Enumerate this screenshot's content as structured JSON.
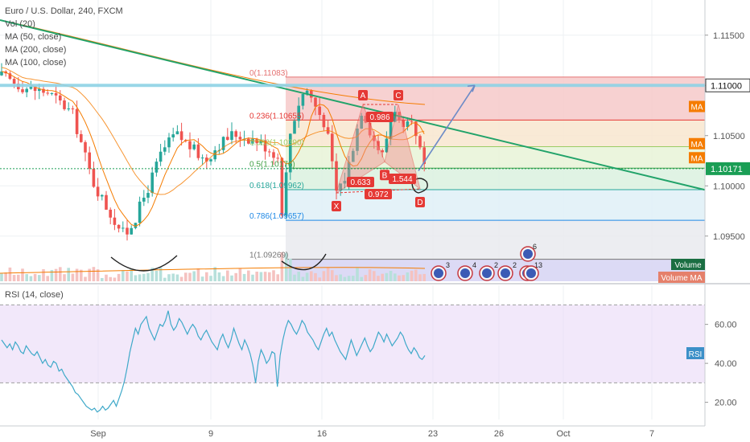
{
  "header": {
    "symbol_line": "Euro / U.S. Dollar, 240, FXCM",
    "vol_label": "Vol (20)",
    "ma50_label": "MA (50, close)",
    "ma200_label": "MA (200, close)",
    "ma100_label": "MA (100, close)",
    "rsi_label": "RSI (14, close)"
  },
  "colors": {
    "up": "#26a69a",
    "down": "#ef5350",
    "trendline": "#22a36a",
    "ma": "#f57c00",
    "rsi": "#3fa9c9",
    "rsi_band": "#ead9f7",
    "pattern_fill": "#f28c8c",
    "arrow": "#6d8bc7",
    "price_tag_green": "#1a9e55",
    "resistance": "#8fd3e6"
  },
  "chart_data": {
    "type": "candlestick",
    "price_axis": {
      "ticks": [
        1.115,
        1.11,
        1.105,
        1.1,
        1.095
      ],
      "tick_labels": [
        "1.11500",
        "1.11000",
        "1.10500",
        "1.10000",
        "1.09500"
      ],
      "ylim": [
        1.0905,
        1.1185
      ]
    },
    "time_axis": {
      "tick_labels": [
        "Sep",
        "9",
        "16",
        "23",
        "26",
        "Oct",
        "7"
      ]
    },
    "price_tags": [
      {
        "label": "1.11000",
        "value": 1.11,
        "style": "outline"
      },
      {
        "label": "1.10171",
        "value": 1.10171,
        "style": "filled"
      }
    ],
    "ma_tags": [
      {
        "label": "MA",
        "value": 1.1079
      },
      {
        "label": "MA",
        "value": 1.1042
      },
      {
        "label": "MA",
        "value": 1.1028
      }
    ],
    "fib_levels": [
      {
        "label": "0(1.11083)",
        "value": 1.11083,
        "color": "#e57373"
      },
      {
        "label": "0.236(1.10655)",
        "value": 1.10655,
        "color": "#e53935"
      },
      {
        "label": "0.382(1.10390)",
        "value": 1.1039,
        "color": "#9ccc65"
      },
      {
        "label": "0.5(1.10176)",
        "value": 1.10176,
        "color": "#43a047"
      },
      {
        "label": "0.618(1.09962)",
        "value": 1.09962,
        "color": "#26a69a"
      },
      {
        "label": "0.786(1.09657)",
        "value": 1.09657,
        "color": "#1e88e5"
      },
      {
        "label": "1(1.09269)",
        "value": 1.09269,
        "color": "#757575"
      }
    ],
    "pattern_points": [
      {
        "label": "X",
        "value": 1.0993
      },
      {
        "label": "A",
        "value": 1.1081
      },
      {
        "label": "B",
        "value": 1.1024
      },
      {
        "label": "C",
        "value": 1.1081
      },
      {
        "label": "D",
        "value": 1.0997
      }
    ],
    "pattern_ratios": [
      "0.633",
      "0.986",
      "1.544",
      "0.972"
    ],
    "indicator_tags": [
      "Volume",
      "Volume MA"
    ],
    "event_counts": [
      "3",
      "4",
      "2",
      "2",
      "1",
      "3",
      "6"
    ],
    "rsi": {
      "ticks": [
        60,
        40,
        20
      ],
      "tick_labels": [
        "60.00",
        "40.00",
        "20.00"
      ],
      "ylim": [
        12,
        78
      ],
      "upper_band": 70,
      "lower_band": 30,
      "tag": "RSI",
      "values": [
        52,
        50,
        48,
        50,
        47,
        51,
        49,
        46,
        45,
        49,
        47,
        45,
        44,
        46,
        43,
        40,
        42,
        39,
        38,
        41,
        40,
        36,
        37,
        34,
        32,
        30,
        28,
        25,
        24,
        22,
        20,
        18,
        17,
        16,
        17,
        15,
        16,
        18,
        16,
        17,
        19,
        21,
        18,
        22,
        26,
        31,
        38,
        46,
        52,
        58,
        55,
        60,
        62,
        64,
        58,
        55,
        52,
        56,
        60,
        59,
        62,
        67,
        60,
        57,
        59,
        63,
        61,
        58,
        55,
        58,
        60,
        58,
        54,
        52,
        55,
        57,
        54,
        51,
        49,
        47,
        52,
        55,
        51,
        48,
        52,
        58,
        54,
        50,
        47,
        52,
        49,
        45,
        39,
        30,
        41,
        47,
        44,
        40,
        42,
        46,
        45,
        28,
        44,
        52,
        58,
        62,
        60,
        57,
        55,
        58,
        62,
        60,
        56,
        54,
        52,
        49,
        47,
        51,
        55,
        58,
        54,
        56,
        52,
        49,
        46,
        44,
        42,
        47,
        52,
        48,
        44,
        47,
        50,
        53,
        49,
        46,
        48,
        52,
        56,
        54,
        51,
        55,
        52,
        49,
        51,
        53,
        56,
        54,
        50,
        47,
        45,
        48,
        46,
        43,
        42,
        44
      ]
    }
  }
}
